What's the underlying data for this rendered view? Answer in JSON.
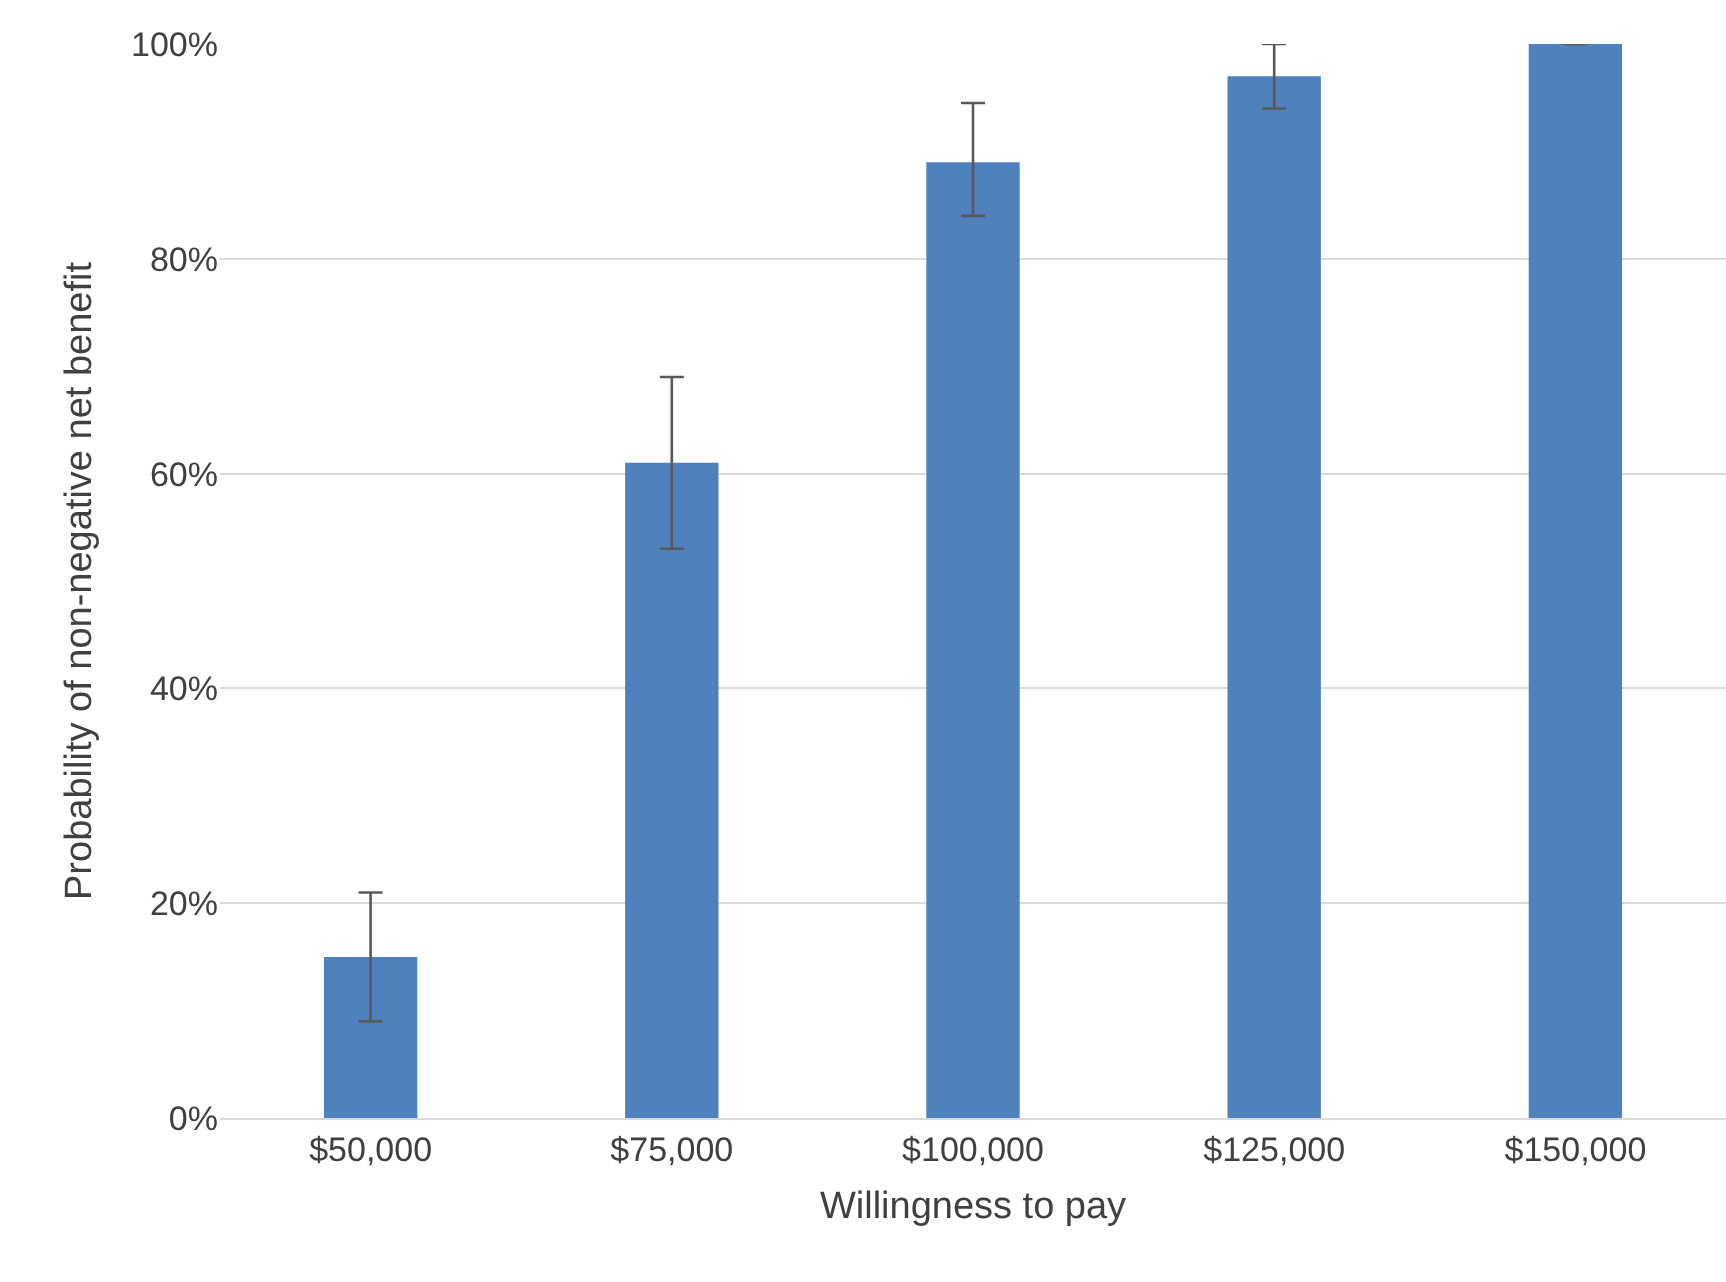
{
  "chart_data": {
    "type": "bar",
    "xlabel": "Willingness to pay",
    "ylabel": "Probability of non-negative net benefit",
    "categories": [
      "$50,000",
      "$75,000",
      "$100,000",
      "$125,000",
      "$150,000"
    ],
    "values": [
      15,
      61,
      89,
      97,
      100
    ],
    "errors": [
      [
        9,
        21
      ],
      [
        53,
        69
      ],
      [
        84,
        94.5
      ],
      [
        94,
        100
      ],
      null
    ],
    "color": "#4f81bd",
    "ylim": [
      0,
      100
    ],
    "yticks": [
      {
        "value": 0,
        "label": "0%"
      },
      {
        "value": 20,
        "label": "20%"
      },
      {
        "value": 40,
        "label": "40%"
      },
      {
        "value": 60,
        "label": "60%"
      },
      {
        "value": 80,
        "label": "80%"
      },
      {
        "value": 100,
        "label": "100%"
      }
    ],
    "grid": "y"
  }
}
